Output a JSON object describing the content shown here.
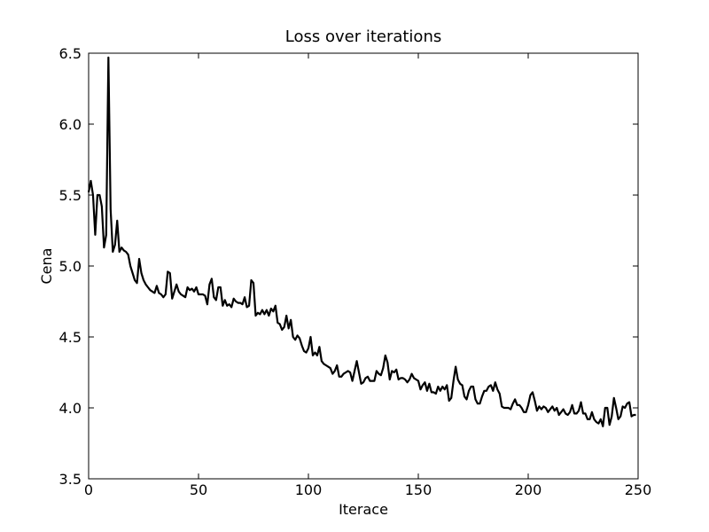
{
  "chart_data": {
    "type": "line",
    "title": "Loss over iterations",
    "x_label": "Iterace",
    "y_label": "Cena",
    "x": [
      0,
      1,
      2,
      3,
      4,
      5,
      6,
      7,
      8,
      9,
      10,
      11,
      12,
      13,
      14,
      15,
      16,
      17,
      18,
      19,
      20,
      21,
      22,
      23,
      24,
      25,
      26,
      27,
      28,
      29,
      30,
      31,
      32,
      33,
      34,
      35,
      36,
      37,
      38,
      39,
      40,
      41,
      42,
      43,
      44,
      45,
      46,
      47,
      48,
      49,
      50,
      51,
      52,
      53,
      54,
      55,
      56,
      57,
      58,
      59,
      60,
      61,
      62,
      63,
      64,
      65,
      66,
      67,
      68,
      69,
      70,
      71,
      72,
      73,
      74,
      75,
      76,
      77,
      78,
      79,
      80,
      81,
      82,
      83,
      84,
      85,
      86,
      87,
      88,
      89,
      90,
      91,
      92,
      93,
      94,
      95,
      96,
      97,
      98,
      99,
      100,
      101,
      102,
      103,
      104,
      105,
      106,
      107,
      108,
      109,
      110,
      111,
      112,
      113,
      114,
      115,
      116,
      117,
      118,
      119,
      120,
      121,
      122,
      123,
      124,
      125,
      126,
      127,
      128,
      129,
      130,
      131,
      132,
      133,
      134,
      135,
      136,
      137,
      138,
      139,
      140,
      141,
      142,
      143,
      144,
      145,
      146,
      147,
      148,
      149,
      150,
      151,
      152,
      153,
      154,
      155,
      156,
      157,
      158,
      159,
      160,
      161,
      162,
      163,
      164,
      165,
      166,
      167,
      168,
      169,
      170,
      171,
      172,
      173,
      174,
      175,
      176,
      177,
      178,
      179,
      180,
      181,
      182,
      183,
      184,
      185,
      186,
      187,
      188,
      189,
      190,
      191,
      192,
      193,
      194,
      195,
      196,
      197,
      198,
      199,
      200,
      201,
      202,
      203,
      204,
      205,
      206,
      207,
      208,
      209,
      210,
      211,
      212,
      213,
      214,
      215,
      216,
      217,
      218,
      219,
      220,
      221,
      222,
      223,
      224,
      225,
      226,
      227,
      228,
      229,
      230,
      231,
      232,
      233,
      234,
      235,
      236,
      237,
      238,
      239,
      240,
      241,
      242,
      243,
      244,
      245,
      246,
      247,
      248,
      249
    ],
    "series": [
      {
        "name": "Loss",
        "color": "#000000",
        "values": [
          5.52,
          5.6,
          5.5,
          5.22,
          5.5,
          5.5,
          5.42,
          5.13,
          5.22,
          6.47,
          5.4,
          5.1,
          5.15,
          5.32,
          5.1,
          5.13,
          5.11,
          5.1,
          5.08,
          5.0,
          4.95,
          4.9,
          4.88,
          5.05,
          4.95,
          4.9,
          4.87,
          4.85,
          4.83,
          4.82,
          4.81,
          4.86,
          4.81,
          4.8,
          4.78,
          4.8,
          4.96,
          4.95,
          4.77,
          4.82,
          4.87,
          4.82,
          4.8,
          4.79,
          4.78,
          4.85,
          4.83,
          4.84,
          4.82,
          4.85,
          4.8,
          4.8,
          4.8,
          4.79,
          4.73,
          4.87,
          4.91,
          4.78,
          4.76,
          4.85,
          4.85,
          4.72,
          4.76,
          4.72,
          4.73,
          4.71,
          4.77,
          4.75,
          4.74,
          4.74,
          4.73,
          4.78,
          4.71,
          4.72,
          4.9,
          4.88,
          4.65,
          4.67,
          4.66,
          4.69,
          4.66,
          4.69,
          4.65,
          4.7,
          4.68,
          4.72,
          4.6,
          4.59,
          4.55,
          4.57,
          4.65,
          4.56,
          4.62,
          4.5,
          4.48,
          4.51,
          4.49,
          4.44,
          4.4,
          4.39,
          4.42,
          4.5,
          4.37,
          4.39,
          4.37,
          4.43,
          4.33,
          4.31,
          4.3,
          4.29,
          4.28,
          4.24,
          4.26,
          4.3,
          4.22,
          4.22,
          4.24,
          4.25,
          4.26,
          4.25,
          4.19,
          4.26,
          4.33,
          4.25,
          4.17,
          4.18,
          4.21,
          4.22,
          4.19,
          4.19,
          4.19,
          4.26,
          4.24,
          4.23,
          4.28,
          4.37,
          4.32,
          4.2,
          4.26,
          4.25,
          4.27,
          4.2,
          4.21,
          4.21,
          4.2,
          4.18,
          4.2,
          4.24,
          4.21,
          4.2,
          4.19,
          4.13,
          4.16,
          4.18,
          4.12,
          4.17,
          4.11,
          4.11,
          4.1,
          4.15,
          4.12,
          4.15,
          4.13,
          4.16,
          4.05,
          4.07,
          4.19,
          4.29,
          4.2,
          4.17,
          4.16,
          4.08,
          4.06,
          4.12,
          4.15,
          4.15,
          4.06,
          4.03,
          4.03,
          4.08,
          4.12,
          4.12,
          4.15,
          4.16,
          4.12,
          4.18,
          4.13,
          4.1,
          4.01,
          4.0,
          4.0,
          4.0,
          3.99,
          4.03,
          4.06,
          4.02,
          4.02,
          4.0,
          3.97,
          3.97,
          4.02,
          4.09,
          4.11,
          4.05,
          3.98,
          4.01,
          3.99,
          4.01,
          4.0,
          3.97,
          3.99,
          4.01,
          3.98,
          4.0,
          3.95,
          3.97,
          3.99,
          3.96,
          3.95,
          3.97,
          4.02,
          3.96,
          3.96,
          3.98,
          4.04,
          3.96,
          3.96,
          3.92,
          3.92,
          3.97,
          3.92,
          3.9,
          3.89,
          3.92,
          3.87,
          4.0,
          4.0,
          3.88,
          3.94,
          4.07,
          4.0,
          3.92,
          3.94,
          4.01,
          4.0,
          4.03,
          4.04,
          3.94,
          3.95,
          3.95
        ]
      }
    ],
    "xlim": [
      0,
      250
    ],
    "ylim": [
      3.5,
      6.5
    ],
    "xticks": [
      0,
      50,
      100,
      150,
      200,
      250
    ],
    "yticks": [
      3.5,
      {
        "value": 4,
        "label": "4.0"
      },
      4.5,
      {
        "value": 5,
        "label": "5.0"
      },
      5.5,
      {
        "value": 6,
        "label": "6.0"
      },
      6.5
    ]
  }
}
